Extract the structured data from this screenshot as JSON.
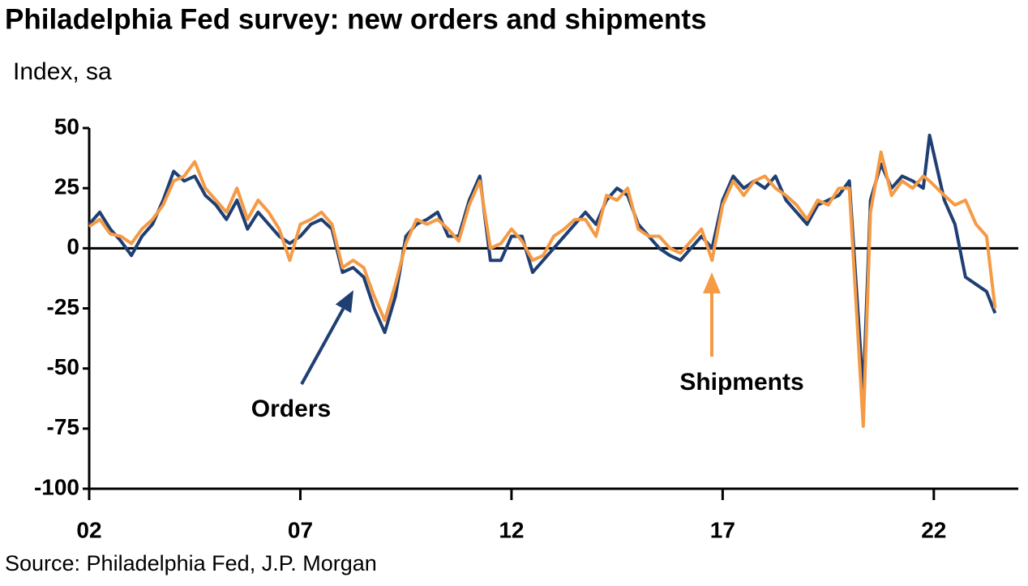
{
  "chart_data": {
    "type": "line",
    "title": "Philadelphia Fed survey: new orders and shipments",
    "y_axis_label": "Index, sa",
    "source": "Source: Philadelphia Fed, J.P. Morgan",
    "annotations": [
      "Orders",
      "Shipments"
    ],
    "x": [
      2002.0,
      2002.25,
      2002.5,
      2002.75,
      2003.0,
      2003.25,
      2003.5,
      2003.75,
      2004.0,
      2004.25,
      2004.5,
      2004.75,
      2005.0,
      2005.25,
      2005.5,
      2005.75,
      2006.0,
      2006.25,
      2006.5,
      2006.75,
      2007.0,
      2007.25,
      2007.5,
      2007.75,
      2008.0,
      2008.25,
      2008.5,
      2008.75,
      2009.0,
      2009.25,
      2009.5,
      2009.75,
      2010.0,
      2010.25,
      2010.5,
      2010.75,
      2011.0,
      2011.25,
      2011.5,
      2011.75,
      2012.0,
      2012.25,
      2012.5,
      2012.75,
      2013.0,
      2013.25,
      2013.5,
      2013.75,
      2014.0,
      2014.25,
      2014.5,
      2014.75,
      2015.0,
      2015.25,
      2015.5,
      2015.75,
      2016.0,
      2016.25,
      2016.5,
      2016.75,
      2017.0,
      2017.25,
      2017.5,
      2017.75,
      2018.0,
      2018.25,
      2018.5,
      2018.75,
      2019.0,
      2019.25,
      2019.5,
      2019.75,
      2020.0,
      2020.33,
      2020.5,
      2020.75,
      2021.0,
      2021.25,
      2021.5,
      2021.75,
      2021.9,
      2022.25,
      2022.5,
      2022.75,
      2023.0,
      2023.25,
      2023.45
    ],
    "series": [
      {
        "name": "Orders",
        "color": "#1f3f73",
        "values": [
          10,
          15,
          8,
          3,
          -3,
          5,
          10,
          20,
          32,
          28,
          30,
          22,
          18,
          12,
          20,
          8,
          15,
          10,
          5,
          2,
          5,
          10,
          12,
          8,
          -10,
          -8,
          -12,
          -25,
          -35,
          -20,
          5,
          10,
          12,
          15,
          5,
          5,
          20,
          30,
          -5,
          -5,
          5,
          5,
          -10,
          -5,
          0,
          5,
          10,
          15,
          10,
          20,
          25,
          22,
          10,
          5,
          0,
          -3,
          -5,
          0,
          5,
          0,
          20,
          30,
          25,
          28,
          25,
          30,
          20,
          15,
          10,
          18,
          20,
          22,
          28,
          -60,
          20,
          35,
          25,
          30,
          28,
          25,
          47,
          20,
          10,
          -12,
          -15,
          -18,
          -27
        ]
      },
      {
        "name": "Shipments",
        "color": "#f59a45",
        "values": [
          9,
          12,
          6,
          5,
          2,
          8,
          12,
          18,
          28,
          30,
          36,
          25,
          20,
          15,
          25,
          12,
          20,
          15,
          8,
          -5,
          10,
          12,
          15,
          10,
          -8,
          -5,
          -8,
          -20,
          -30,
          -15,
          2,
          12,
          10,
          12,
          8,
          3,
          18,
          28,
          0,
          2,
          8,
          3,
          -5,
          -3,
          5,
          8,
          12,
          12,
          5,
          22,
          20,
          25,
          8,
          5,
          5,
          0,
          -2,
          3,
          8,
          -5,
          18,
          28,
          22,
          28,
          30,
          25,
          22,
          18,
          12,
          20,
          18,
          25,
          25,
          -74,
          15,
          40,
          22,
          28,
          25,
          30,
          28,
          22,
          18,
          20,
          10,
          5,
          -25
        ]
      }
    ],
    "xlim": [
      2002,
      2024
    ],
    "xticks": [
      {
        "value": 2002,
        "label": "02"
      },
      {
        "value": 2007,
        "label": "07"
      },
      {
        "value": 2012,
        "label": "12"
      },
      {
        "value": 2017,
        "label": "17"
      },
      {
        "value": 2022,
        "label": "22"
      }
    ],
    "ylim": [
      -100,
      50
    ],
    "yticks": [
      -100,
      -75,
      -50,
      -25,
      0,
      25,
      50
    ]
  }
}
